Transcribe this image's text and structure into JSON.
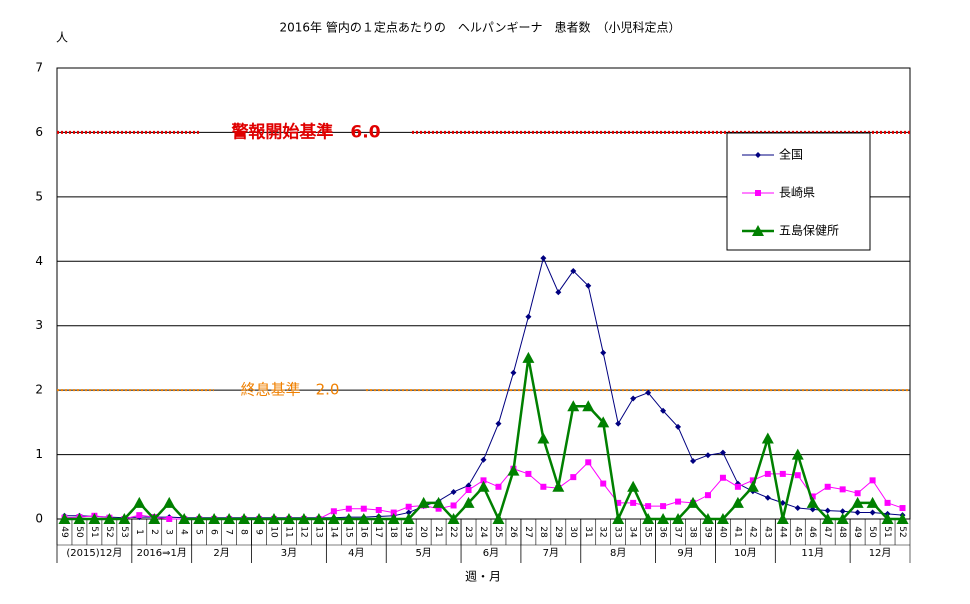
{
  "chart_data": {
    "type": "line",
    "title": "2016年 管内の１定点あたりの　ヘルパンギーナ　患者数　（小児科定点）",
    "y_label": "人",
    "x_label": "週・月",
    "categories": [
      "49",
      "50",
      "51",
      "52",
      "53",
      "1",
      "2",
      "3",
      "4",
      "5",
      "6",
      "7",
      "8",
      "9",
      "10",
      "11",
      "12",
      "13",
      "14",
      "15",
      "16",
      "17",
      "18",
      "19",
      "20",
      "21",
      "22",
      "23",
      "24",
      "25",
      "26",
      "27",
      "28",
      "29",
      "30",
      "31",
      "32",
      "33",
      "34",
      "35",
      "36",
      "37",
      "38",
      "39",
      "40",
      "41",
      "42",
      "43",
      "44",
      "45",
      "46",
      "47",
      "48",
      "49",
      "50",
      "51",
      "52"
    ],
    "month_labels": [
      "(2015)12月",
      "2016⇒1月",
      "2月",
      "3月",
      "4月",
      "5月",
      "6月",
      "7月",
      "8月",
      "9月",
      "10月",
      "11月",
      "12月"
    ],
    "ylim": [
      0,
      7
    ],
    "yticks": [
      0,
      1,
      2,
      3,
      4,
      5,
      6,
      7
    ],
    "grid": true,
    "legend": "upper right",
    "reference_lines": [
      {
        "label": "警報開始基準　6.0",
        "value": 6,
        "color": "#e00000"
      },
      {
        "label": "終息基準　2.0",
        "value": 2,
        "color": "#f08000"
      }
    ],
    "series": [
      {
        "name": "全国",
        "color": "#000080",
        "marker": "diamond",
        "values": [
          0.05,
          0.05,
          0.04,
          0.03,
          0.02,
          0.03,
          0.03,
          0.03,
          0.02,
          0.02,
          0.02,
          0.02,
          0.02,
          0.02,
          0.02,
          0.02,
          0.02,
          0.02,
          0.02,
          0.03,
          0.03,
          0.04,
          0.05,
          0.1,
          0.2,
          0.28,
          0.42,
          0.52,
          0.92,
          1.48,
          2.27,
          3.14,
          4.05,
          3.52,
          3.85,
          3.62,
          2.58,
          1.48,
          1.87,
          1.96,
          1.68,
          1.43,
          0.9,
          0.99,
          1.03,
          0.55,
          0.43,
          0.33,
          0.25,
          0.17,
          0.15,
          0.13,
          0.12,
          0.1,
          0.1,
          0.08,
          0.06
        ]
      },
      {
        "name": "長崎県",
        "color": "#ff00ff",
        "marker": "square",
        "values": [
          0.02,
          0.03,
          0.05,
          0.02,
          0,
          0.06,
          0.03,
          0,
          0,
          0,
          0,
          0,
          0,
          0,
          0,
          0,
          0,
          0,
          0.12,
          0.16,
          0.16,
          0.14,
          0.1,
          0.19,
          0.21,
          0.16,
          0.21,
          0.45,
          0.6,
          0.5,
          0.78,
          0.7,
          0.5,
          0.48,
          0.65,
          0.88,
          0.55,
          0.25,
          0.25,
          0.2,
          0.2,
          0.27,
          0.25,
          0.37,
          0.64,
          0.5,
          0.6,
          0.7,
          0.7,
          0.68,
          0.35,
          0.5,
          0.46,
          0.4,
          0.6,
          0.25,
          0.17
        ]
      },
      {
        "name": "五島保健所",
        "color": "#008000",
        "marker": "triangle",
        "values": [
          0,
          0,
          0,
          0,
          0,
          0.25,
          0,
          0.25,
          0,
          0,
          0,
          0,
          0,
          0,
          0,
          0,
          0,
          0,
          0,
          0,
          0,
          0,
          0,
          0,
          0.25,
          0.25,
          0,
          0.25,
          0.5,
          0,
          0.75,
          2.5,
          1.25,
          0.5,
          1.75,
          1.75,
          1.5,
          0,
          0.5,
          0,
          0,
          0,
          0.25,
          0,
          0,
          0.25,
          0.5,
          1.25,
          0,
          1,
          0.25,
          0,
          0,
          0.25,
          0.25,
          0,
          0
        ]
      }
    ]
  }
}
